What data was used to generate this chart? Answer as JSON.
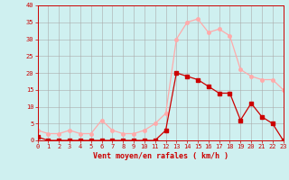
{
  "hours": [
    0,
    1,
    2,
    3,
    4,
    5,
    6,
    7,
    8,
    9,
    10,
    11,
    12,
    13,
    14,
    15,
    16,
    17,
    18,
    19,
    20,
    21,
    22,
    23
  ],
  "wind_avg": [
    1,
    0,
    0,
    0,
    0,
    0,
    0,
    0,
    0,
    0,
    0,
    0,
    3,
    20,
    19,
    18,
    16,
    14,
    14,
    6,
    11,
    7,
    5,
    0
  ],
  "wind_gust": [
    3,
    2,
    2,
    3,
    2,
    2,
    6,
    3,
    2,
    2,
    3,
    5,
    8,
    30,
    35,
    36,
    32,
    33,
    31,
    21,
    19,
    18,
    18,
    15
  ],
  "line_color_avg": "#cc0000",
  "line_color_gust": "#ffaaaa",
  "bg_color": "#cff0f0",
  "grid_color": "#aaaaaa",
  "xlabel": "Vent moyen/en rafales ( km/h )",
  "ylabel_ticks": [
    0,
    5,
    10,
    15,
    20,
    25,
    30,
    35,
    40
  ],
  "ylim": [
    0,
    40
  ],
  "xlim": [
    0,
    23
  ],
  "axis_color": "#cc0000",
  "marker_size_avg": 2.5,
  "marker_size_gust": 2.5
}
